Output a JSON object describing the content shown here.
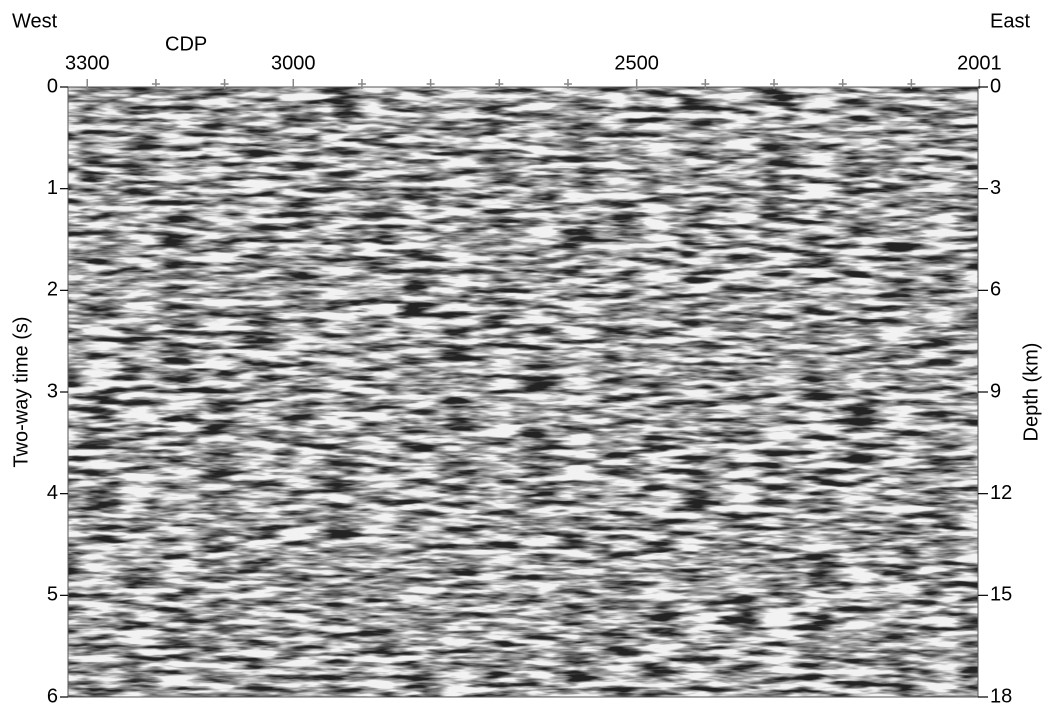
{
  "chart_data": {
    "type": "seismic-section",
    "left_label": "West",
    "right_label": "East",
    "xlabel": "CDP",
    "ylabel": "Two-way time (s)",
    "y2label": "Depth (km)",
    "xlim": [
      3328,
      2003
    ],
    "xticks": [
      3300,
      3000,
      2500,
      2001
    ],
    "xminor_ticks": [
      3200,
      3100,
      2900,
      2800,
      2700,
      2600,
      2400,
      2300,
      2200,
      2100
    ],
    "ylim": [
      0,
      6
    ],
    "yticks": [
      0,
      1,
      2,
      3,
      4,
      5,
      6
    ],
    "y2lim": [
      0,
      18
    ],
    "y2ticks": [
      0,
      3,
      6,
      9,
      12,
      15,
      18
    ]
  }
}
